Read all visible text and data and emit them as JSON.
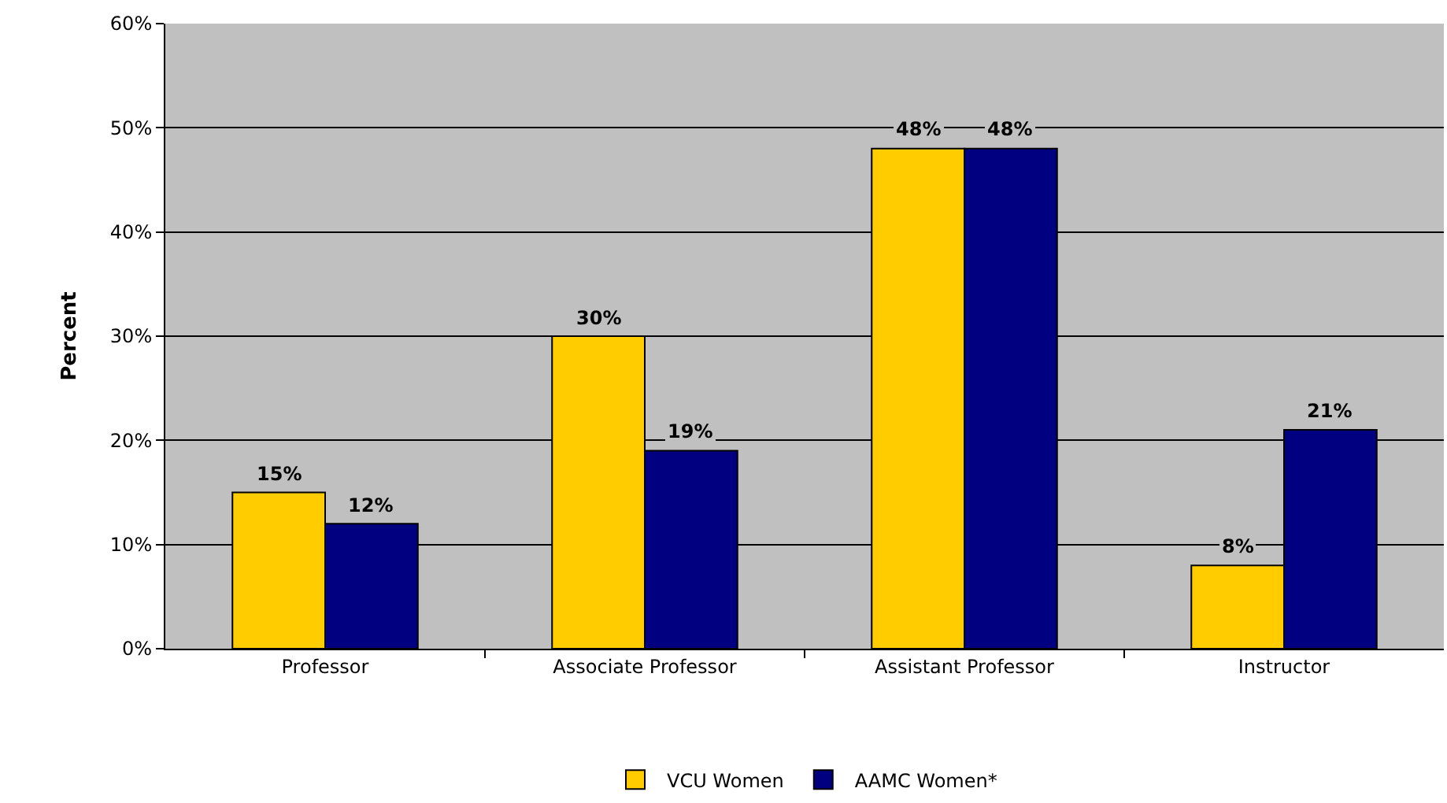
{
  "chart_data": {
    "type": "bar",
    "ylabel": "Percent",
    "categories": [
      "Professor",
      "Associate Professor",
      "Assistant Professor",
      "Instructor"
    ],
    "series": [
      {
        "name": "VCU Women",
        "color": "#ffcc00",
        "values": [
          15,
          30,
          48,
          8
        ],
        "value_labels": [
          "15%",
          "30%",
          "48%",
          "8%"
        ]
      },
      {
        "name": "AAMC Women*",
        "color": "#000080",
        "values": [
          12,
          19,
          48,
          21
        ],
        "value_labels": [
          "12%",
          "19%",
          "48%",
          "21%"
        ]
      }
    ],
    "ylim": [
      0,
      60
    ],
    "yticks": [
      {
        "value": 0,
        "label": "0%"
      },
      {
        "value": 10,
        "label": "10%"
      },
      {
        "value": 20,
        "label": "20%"
      },
      {
        "value": 30,
        "label": "30%"
      },
      {
        "value": 40,
        "label": "40%"
      },
      {
        "value": 50,
        "label": "50%"
      },
      {
        "value": 60,
        "label": "60%"
      }
    ],
    "grid": "y",
    "legend": "bottom"
  }
}
